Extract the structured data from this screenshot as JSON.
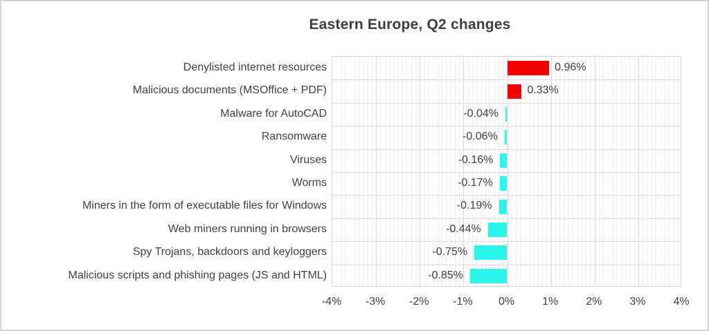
{
  "chart_data": {
    "type": "bar",
    "orientation": "horizontal",
    "title": "Eastern Europe, Q2 changes",
    "categories": [
      "Denylisted internet resources",
      "Malicious documents (MSOffice + PDF)",
      "Malware for AutoCAD",
      "Ransomware",
      "Viruses",
      "Worms",
      "Miners in the form of executable files for Windows",
      "Web miners running in browsers",
      "Spy Trojans, backdoors and keyloggers",
      "Malicious scripts and phishing pages (JS and HTML)"
    ],
    "values": [
      0.96,
      0.33,
      -0.04,
      -0.06,
      -0.16,
      -0.17,
      -0.19,
      -0.44,
      -0.75,
      -0.85
    ],
    "value_labels": [
      "0.96%",
      "0.33%",
      "-0.04%",
      "-0.06%",
      "-0.16%",
      "-0.17%",
      "-0.19%",
      "-0.44%",
      "-0.75%",
      "-0.85%"
    ],
    "xlim": [
      -4,
      4
    ],
    "x_tick_labels": [
      "-4%",
      "-3%",
      "-2%",
      "-1%",
      "0%",
      "1%",
      "2%",
      "3%",
      "4%"
    ],
    "x_major_step": 1,
    "x_minor_step": 0.1,
    "grid": true,
    "legend": "none",
    "positive_color": "#f90000",
    "negative_color": "#2bf6ec",
    "text_color": "#404040"
  }
}
